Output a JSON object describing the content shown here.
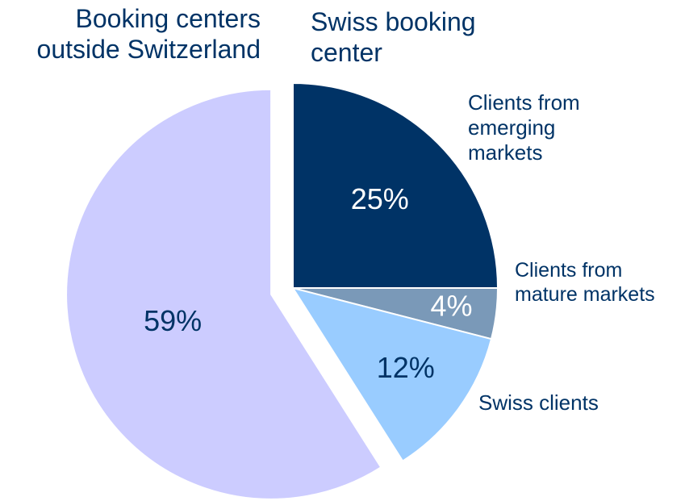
{
  "chart_data": {
    "type": "pie",
    "categories": [
      "Clients from emerging markets",
      "Clients from mature markets",
      "Swiss clients",
      "Booking centers outside Switzerland"
    ],
    "values": [
      25,
      4,
      12,
      59
    ],
    "value_labels": [
      "25%",
      "4%",
      "12%",
      "59%"
    ],
    "colors": [
      "#003366",
      "#7a99b8",
      "#99ccff",
      "#ccccff"
    ],
    "annotations": [
      "Swiss booking center"
    ]
  }
}
